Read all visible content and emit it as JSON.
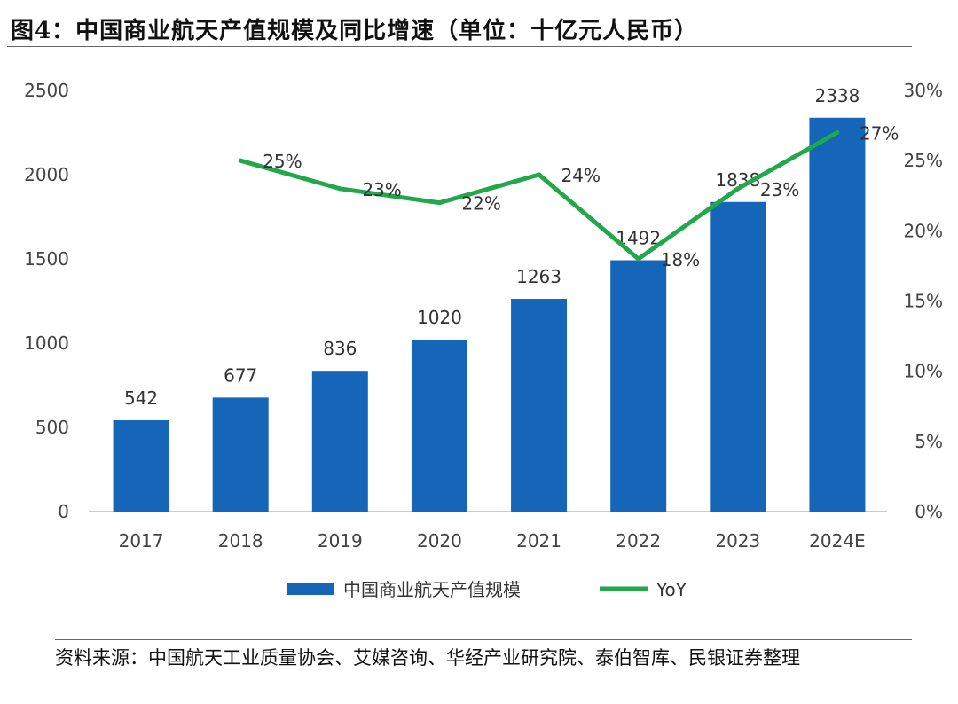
{
  "title": "图4：中国商业航天产值规模及同比增速（单位：十亿元人民币）",
  "source": "资料来源：中国航天工业质量协会、艾媒咨询、华经产业研究院、泰伯智库、民银证券整理",
  "colors": {
    "bar": "#1565B8",
    "line": "#22A84A"
  },
  "chart_data": {
    "type": "bar+line",
    "categories": [
      "2017",
      "2018",
      "2019",
      "2020",
      "2021",
      "2022",
      "2023",
      "2024E"
    ],
    "series": [
      {
        "name": "中国商业航天产值规模",
        "type": "bar",
        "axis": "left",
        "values": [
          542,
          677,
          836,
          1020,
          1263,
          1492,
          1838,
          2338
        ],
        "labels": [
          "542",
          "677",
          "836",
          "1020",
          "1263",
          "1492",
          "1838",
          "2338"
        ]
      },
      {
        "name": "YoY",
        "type": "line",
        "axis": "right",
        "values": [
          null,
          25,
          23,
          22,
          24,
          18,
          23,
          27
        ],
        "labels": [
          "",
          "25%",
          "23%",
          "22%",
          "24%",
          "18%",
          "23%",
          "27%"
        ]
      }
    ],
    "y_left": {
      "min": 0,
      "max": 2500,
      "ticks": [
        "0",
        "500",
        "1000",
        "1500",
        "2000",
        "2500"
      ]
    },
    "y_right": {
      "min": 0,
      "max": 30,
      "ticks": [
        "0%",
        "5%",
        "10%",
        "15%",
        "20%",
        "25%",
        "30%"
      ]
    },
    "legend": {
      "position": "bottom",
      "items": [
        "中国商业航天产值规模",
        "YoY"
      ]
    }
  }
}
